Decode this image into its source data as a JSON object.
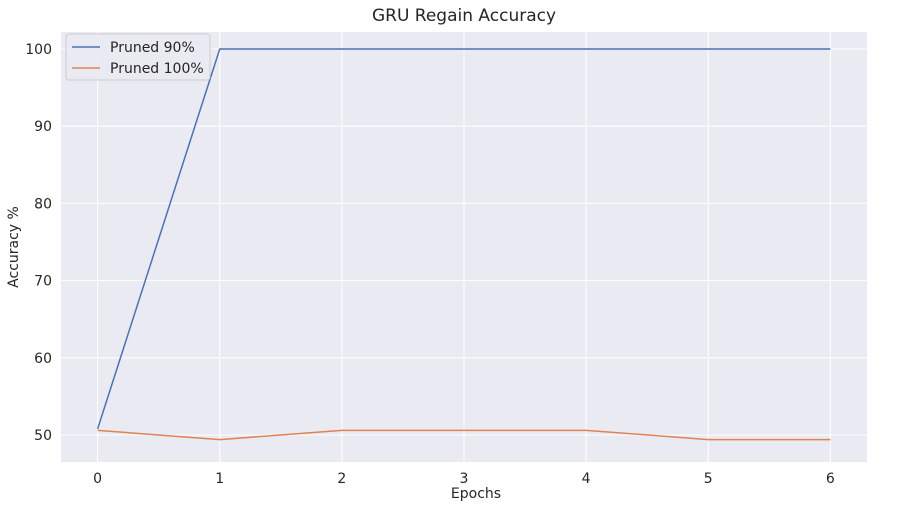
{
  "chart_data": {
    "type": "line",
    "title": "GRU Regain Accuracy",
    "xlabel": "Epochs",
    "ylabel": "Accuracy %",
    "x": [
      0,
      1,
      2,
      3,
      4,
      5,
      6
    ],
    "xlim": [
      -0.3,
      6.3
    ],
    "ylim": [
      46.5,
      102.2
    ],
    "xticks": [
      0,
      1,
      2,
      3,
      4,
      5,
      6
    ],
    "yticks": [
      50,
      60,
      70,
      80,
      90,
      100
    ],
    "grid": true,
    "legend_position": "top-left",
    "background": "#eaeaf2",
    "grid_color": "#ffffff",
    "series": [
      {
        "name": "Pruned 90%",
        "color": "#4c72b0",
        "values": [
          50.8,
          100,
          100,
          100,
          100,
          100,
          100
        ]
      },
      {
        "name": "Pruned 100%",
        "color": "#dd8452",
        "values": [
          50.6,
          49.4,
          50.6,
          50.6,
          50.6,
          49.4,
          49.4
        ]
      }
    ]
  }
}
